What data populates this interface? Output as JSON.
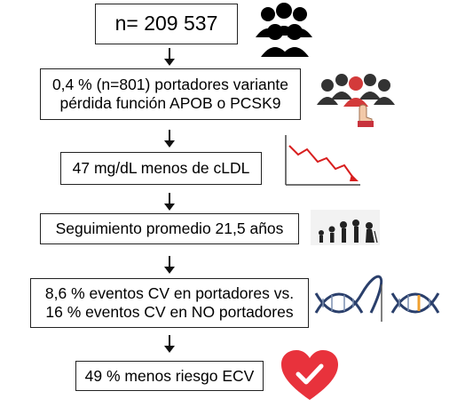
{
  "steps": [
    {
      "text": "n= 209 537"
    },
    {
      "line1": "0,4 % (n=801) portadores variante",
      "line2": "pérdida función APOB o PCSK9"
    },
    {
      "text": "47 mg/dL menos de cLDL"
    },
    {
      "text": "Seguimiento promedio 21,5 años"
    },
    {
      "line1": "8,6 % eventos CV en portadores vs.",
      "line2": "16 % eventos CV en NO portadores"
    },
    {
      "text": "49 % menos riesgo ECV"
    }
  ],
  "icons": [
    "people-group-icon",
    "people-pointing-icon",
    "declining-chart-icon",
    "aging-people-icon",
    "dna-icon",
    "heart-check-icon"
  ],
  "colors": {
    "heart": "#e8323c",
    "pointer": "#c8323c",
    "dna_blue": "#2a3f6b",
    "dna_accent": "#f0a030",
    "chart_line": "#d81e1e"
  }
}
